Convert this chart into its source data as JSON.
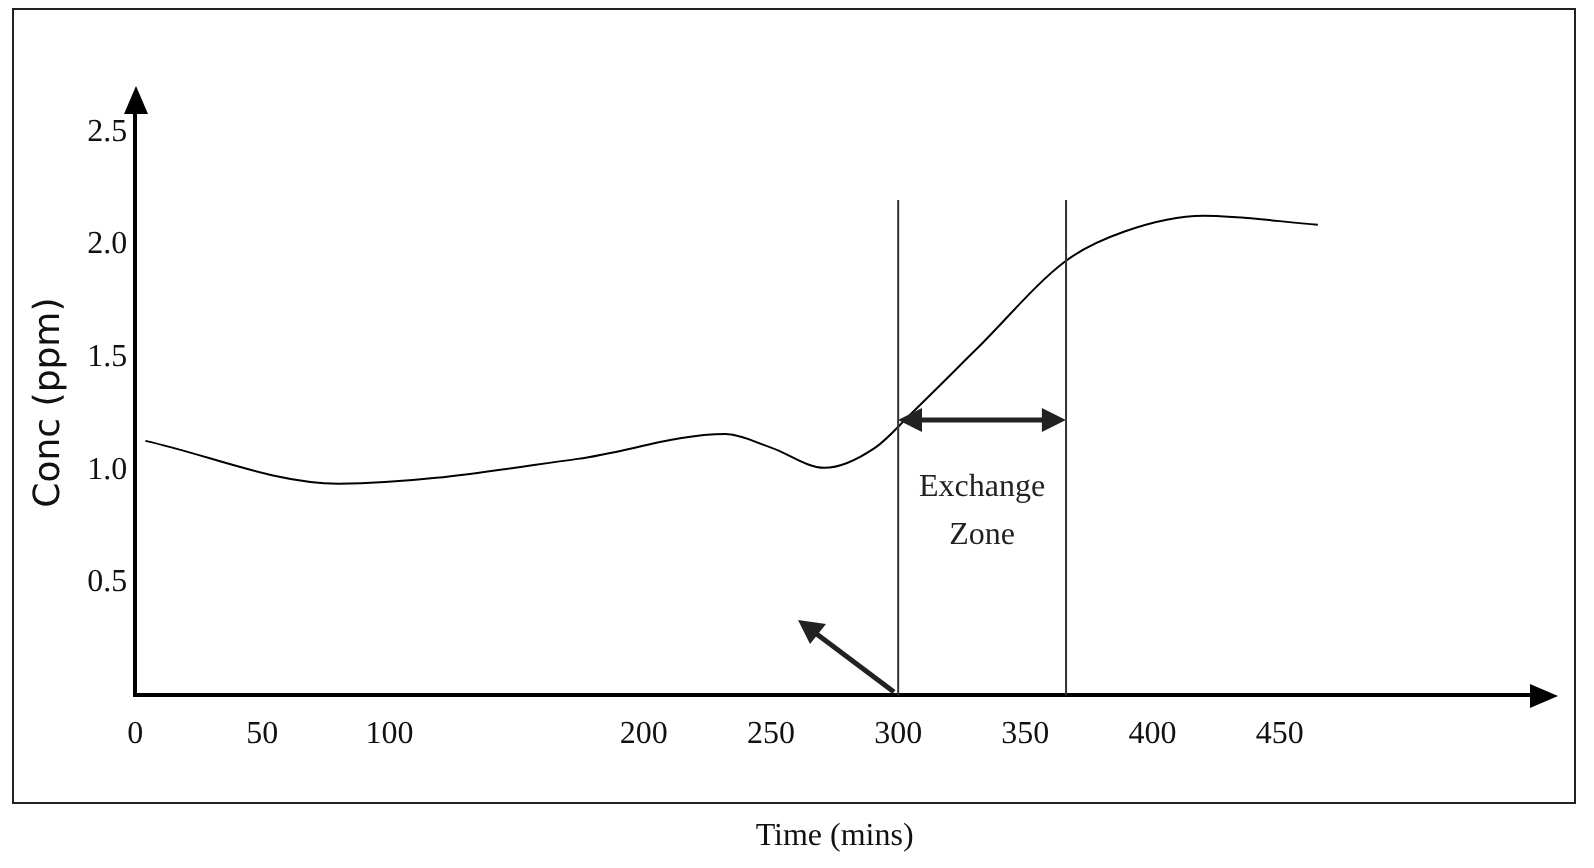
{
  "chart_data": {
    "type": "line",
    "xlabel": "Time (mins)",
    "ylabel": "Conc (ppm)",
    "x": [
      4,
      80,
      174,
      232,
      250,
      271,
      291,
      305,
      331,
      366,
      389,
      420,
      465
    ],
    "series": [
      {
        "color": "#000000",
        "values": [
          1.13,
          0.94,
          1.05,
          1.16,
          1.1,
          1.01,
          1.1,
          1.25,
          1.54,
          1.93,
          2.06,
          2.13,
          2.09
        ]
      }
    ],
    "xlim": [
      0,
      550
    ],
    "xticks": [
      0,
      50,
      100,
      200,
      250,
      300,
      350,
      400,
      450
    ],
    "ylim": [
      0,
      2.6
    ],
    "yticks": [
      0.5,
      {
        "value": 1,
        "label": "1.0"
      },
      1.5,
      {
        "value": 2,
        "label": "2.0"
      },
      2.5
    ],
    "ref_lines": [
      {
        "axis": "x",
        "value": 300,
        "color": "#333333"
      },
      {
        "axis": "x",
        "value": 366,
        "color": "#333333"
      }
    ],
    "annotations": [
      "Exchange Zone"
    ],
    "grid": false,
    "legend": false,
    "marker": "none",
    "line_style": "solid"
  }
}
